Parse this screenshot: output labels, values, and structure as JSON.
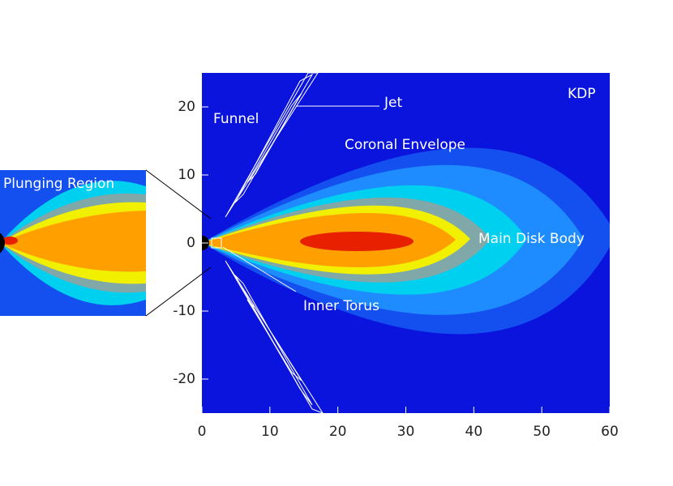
{
  "chart_data": {
    "type": "contour",
    "xlim": [
      0,
      60
    ],
    "ylim": [
      -25,
      25
    ],
    "xticks": [
      0,
      10,
      20,
      30,
      40,
      50,
      60
    ],
    "yticks": [
      -20,
      -10,
      0,
      10,
      20
    ],
    "annotations": [
      "KDP",
      "Funnel",
      "Jet",
      "Coronal Envelope",
      "Main Disk Body",
      "Inner Torus",
      "Plunging Region"
    ]
  }
}
